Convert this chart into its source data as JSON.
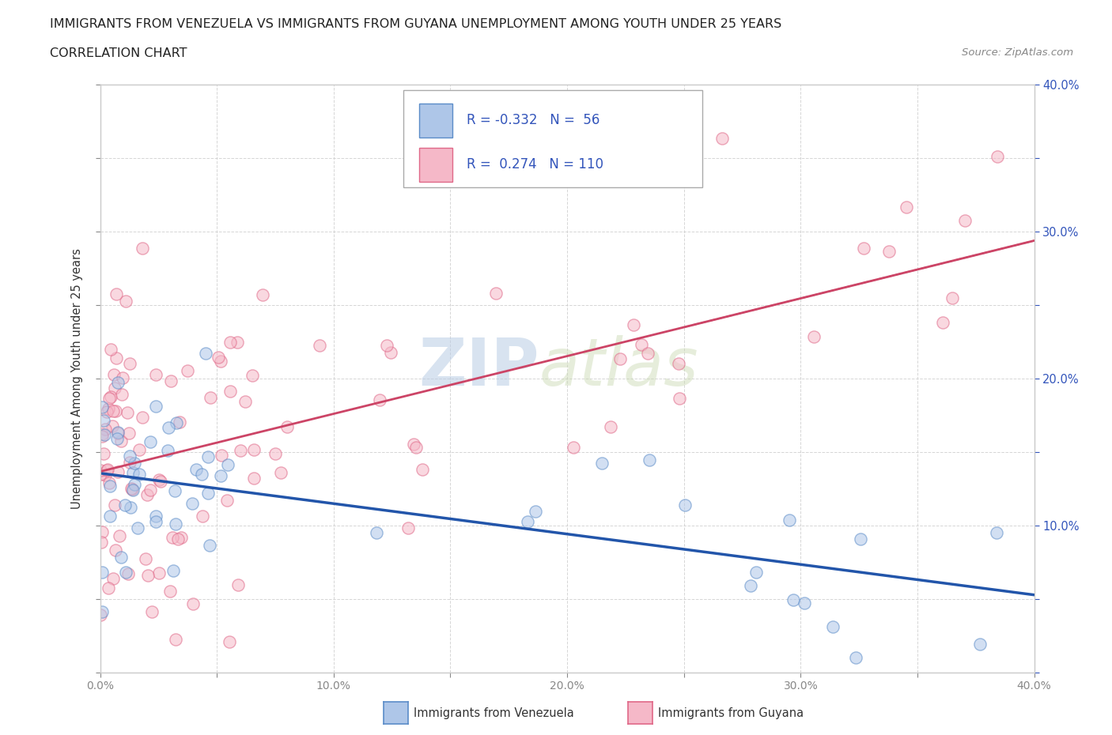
{
  "title_line1": "IMMIGRANTS FROM VENEZUELA VS IMMIGRANTS FROM GUYANA UNEMPLOYMENT AMONG YOUTH UNDER 25 YEARS",
  "title_line2": "CORRELATION CHART",
  "source_text": "Source: ZipAtlas.com",
  "ylabel": "Unemployment Among Youth under 25 years",
  "xlim": [
    0.0,
    0.4
  ],
  "ylim": [
    0.0,
    0.4
  ],
  "venezuela_fill_color": "#aec6e8",
  "venezuela_edge_color": "#5b8cc8",
  "guyana_fill_color": "#f5b8c8",
  "guyana_edge_color": "#e06888",
  "venezuela_line_color": "#2255aa",
  "guyana_line_color": "#cc4466",
  "venezuela_R": -0.332,
  "venezuela_N": 56,
  "guyana_R": 0.274,
  "guyana_N": 110,
  "venezuela_label": "Immigrants from Venezuela",
  "guyana_label": "Immigrants from Guyana",
  "background_color": "#ffffff",
  "grid_color": "#cccccc",
  "watermark": "ZIPAtlas",
  "watermark_color_zip": "#b8cce4",
  "watermark_color_atlas": "#c8d8b0",
  "legend_text_color": "#3355bb",
  "right_axis_color": "#3355bb"
}
